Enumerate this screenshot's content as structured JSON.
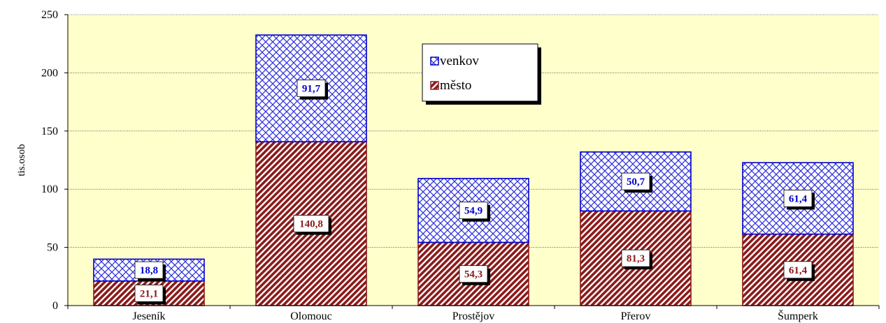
{
  "chart_data": {
    "type": "bar",
    "stacked": true,
    "categories": [
      "Jeseník",
      "Olomouc",
      "Prostějov",
      "Přerov",
      "Šumperk"
    ],
    "series": [
      {
        "name": "město",
        "values": [
          21.1,
          140.8,
          54.3,
          81.3,
          61.4
        ],
        "labels": [
          "21,1",
          "140,8",
          "54,3",
          "81,3",
          "61,4"
        ],
        "color": "#8B1A1A",
        "pattern": "diagonal-hatch"
      },
      {
        "name": "venkov",
        "values": [
          18.8,
          91.7,
          54.9,
          50.7,
          61.4
        ],
        "labels": [
          "18,8",
          "91,7",
          "54,9",
          "50,7",
          "61,4"
        ],
        "color": "#0000CC",
        "pattern": "crosshatch"
      }
    ],
    "ylabel": "tis.osob",
    "xlabel": "",
    "ylim": [
      0,
      250
    ],
    "yticks": [
      0,
      50,
      100,
      150,
      200,
      250
    ],
    "grid": true,
    "legend_position": "top-center",
    "plot_background": "#FFFFCC"
  }
}
